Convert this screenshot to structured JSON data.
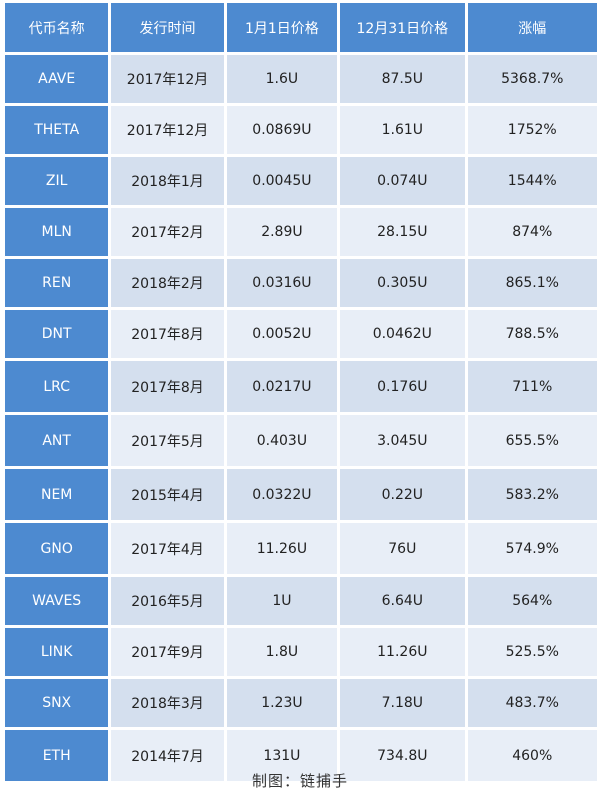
{
  "table": {
    "headers": [
      "代币名称",
      "发行时间",
      "1月1日价格",
      "12月31日价格",
      "涨幅"
    ],
    "rows": [
      [
        "AAVE",
        "2017年12月",
        "1.6U",
        "87.5U",
        "5368.7%"
      ],
      [
        "THETA",
        "2017年12月",
        "0.0869U",
        "1.61U",
        "1752%"
      ],
      [
        "ZIL",
        "2018年1月",
        "0.0045U",
        "0.074U",
        "1544%"
      ],
      [
        "MLN",
        "2017年2月",
        "2.89U",
        "28.15U",
        "874%"
      ],
      [
        "REN",
        "2018年2月",
        "0.0316U",
        "0.305U",
        "865.1%"
      ],
      [
        "DNT",
        "2017年8月",
        "0.0052U",
        "0.0462U",
        "788.5%"
      ],
      [
        "LRC",
        "2017年8月",
        "0.0217U",
        "0.176U",
        "711%"
      ],
      [
        "ANT",
        "2017年5月",
        "0.403U",
        "3.045U",
        "655.5%"
      ],
      [
        "NEM",
        "2015年4月",
        "0.0322U",
        "0.22U",
        "583.2%"
      ],
      [
        "GNO",
        "2017年4月",
        "11.26U",
        "76U",
        "574.9%"
      ],
      [
        "WAVES",
        "2016年5月",
        "1U",
        "6.64U",
        "564%"
      ],
      [
        "LINK",
        "2017年9月",
        "1.8U",
        "11.26U",
        "525.5%"
      ],
      [
        "SNX",
        "2018年3月",
        "1.23U",
        "7.18U",
        "483.7%"
      ],
      [
        "ETH",
        "2014年7月",
        "131U",
        "734.8U",
        "460%"
      ]
    ]
  },
  "caption": "制图：链捕手",
  "colors": {
    "header_bg": "#4d8ad0",
    "row_dark": "#d4dfee",
    "row_light": "#e8eef7"
  }
}
